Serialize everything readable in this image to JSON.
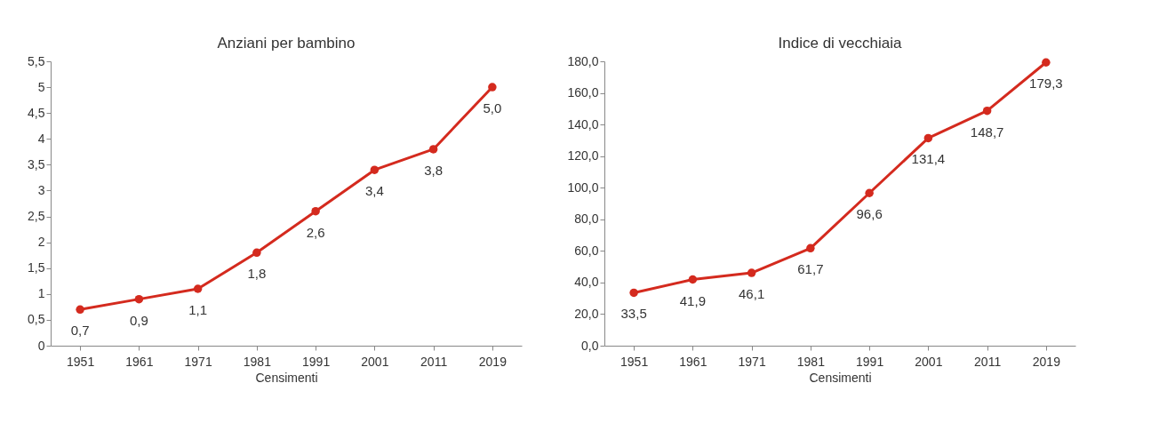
{
  "chart_data": [
    {
      "type": "line",
      "title": "Anziani per bambino",
      "xlabel": "Censimenti",
      "categories": [
        "1951",
        "1961",
        "1971",
        "1981",
        "1991",
        "2001",
        "2011",
        "2019"
      ],
      "series": [
        {
          "color": "#d42a1e",
          "values": [
            0.7,
            0.9,
            1.1,
            1.8,
            2.6,
            3.4,
            3.8,
            5.0
          ],
          "value_labels": [
            "0,7",
            "0,9",
            "1,1",
            "1,8",
            "2,6",
            "3,4",
            "3,8",
            "5,0"
          ]
        }
      ],
      "ylim": [
        0,
        5.5
      ],
      "yticks": [
        0,
        {
          "value": 0.5,
          "label": "0,5"
        },
        1,
        {
          "value": 1.5,
          "label": "1,5"
        },
        2,
        {
          "value": 2.5,
          "label": "2,5"
        },
        3,
        {
          "value": 3.5,
          "label": "3,5"
        },
        4,
        {
          "value": 4.5,
          "label": "4,5"
        },
        5,
        {
          "value": 5.5,
          "label": "5,5"
        }
      ],
      "grid": false,
      "marker": "circle",
      "line_style": "solid"
    },
    {
      "type": "line",
      "title": "Indice di vecchiaia",
      "xlabel": "Censimenti",
      "categories": [
        "1951",
        "1961",
        "1971",
        "1981",
        "1991",
        "2001",
        "2011",
        "2019"
      ],
      "series": [
        {
          "color": "#d42a1e",
          "values": [
            33.5,
            41.9,
            46.1,
            61.7,
            96.6,
            131.4,
            148.7,
            179.3
          ],
          "value_labels": [
            "33,5",
            "41,9",
            "46,1",
            "61,7",
            "96,6",
            "131,4",
            "148,7",
            "179,3"
          ]
        }
      ],
      "ylim": [
        0,
        180
      ],
      "yticks": [
        {
          "value": 0,
          "label": "0,0"
        },
        {
          "value": 20,
          "label": "20,0"
        },
        {
          "value": 40,
          "label": "40,0"
        },
        {
          "value": 60,
          "label": "60,0"
        },
        {
          "value": 80,
          "label": "80,0"
        },
        {
          "value": 100,
          "label": "100,0"
        },
        {
          "value": 120,
          "label": "120,0"
        },
        {
          "value": 140,
          "label": "140,0"
        },
        {
          "value": 160,
          "label": "160,0"
        },
        {
          "value": 180,
          "label": "180,0"
        }
      ],
      "grid": false,
      "marker": "circle",
      "line_style": "solid"
    }
  ]
}
